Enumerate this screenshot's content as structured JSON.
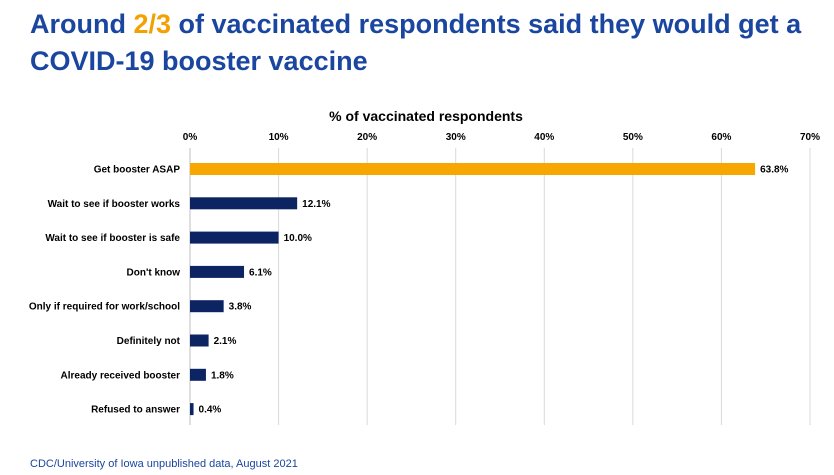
{
  "title": {
    "before": "Around ",
    "highlight": "2/3",
    "after": " of vaccinated respondents said they would get a COVID-19 booster vaccine"
  },
  "footer": "CDC/University of Iowa unpublished data, August 2021",
  "colors": {
    "title": "#1a46a0",
    "highlight": "#f3a100",
    "bar_highlight": "#f7a800",
    "bar_default": "#0c2461"
  },
  "chart_data": {
    "type": "bar",
    "orientation": "horizontal",
    "xlabel": "% of vaccinated respondents",
    "xlim": [
      0,
      70
    ],
    "ticks": [
      "0%",
      "10%",
      "20%",
      "30%",
      "40%",
      "50%",
      "60%",
      "70%"
    ],
    "categories": [
      "Get booster ASAP",
      "Wait to see if booster works",
      "Wait to see if booster is safe",
      "Don't know",
      "Only if required for work/school",
      "Definitely not",
      "Already received booster",
      "Refused to answer"
    ],
    "values": [
      63.8,
      12.1,
      10.0,
      6.1,
      3.8,
      2.1,
      1.8,
      0.4
    ],
    "labels": [
      "63.8%",
      "12.1%",
      "10.0%",
      "6.1%",
      "3.8%",
      "2.1%",
      "1.8%",
      "0.4%"
    ],
    "highlight_index": 0,
    "grid": true
  }
}
